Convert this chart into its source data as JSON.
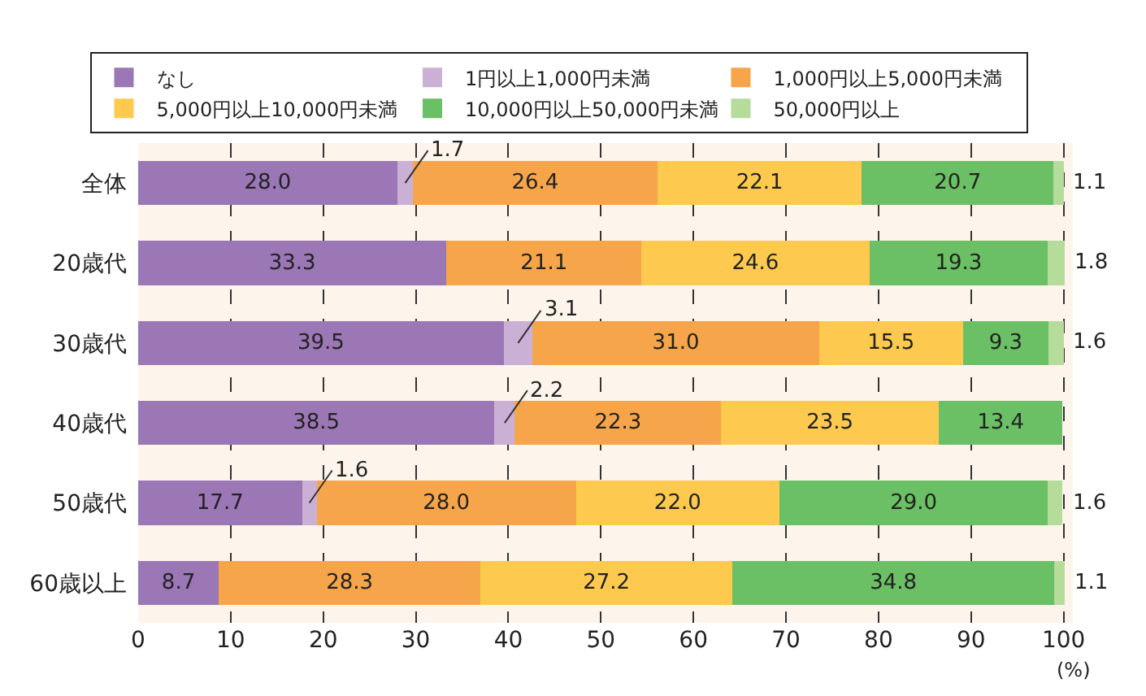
{
  "chart_data": {
    "type": "bar",
    "orientation": "horizontal",
    "stacked": true,
    "legend": "top",
    "grid": "x",
    "xlabel": "(%)",
    "categories": [
      "全体",
      "20歳代",
      "30歳代",
      "40歳代",
      "50歳代",
      "60歳以上"
    ],
    "xlim": [
      0,
      101
    ],
    "xticks": [
      0,
      10,
      20,
      30,
      40,
      50,
      60,
      70,
      80,
      90,
      100
    ],
    "series": [
      {
        "name": "なし",
        "color": "#9b77b5",
        "values": [
          28.0,
          33.3,
          39.5,
          38.5,
          17.7,
          8.7
        ],
        "value_labels": [
          "28.0",
          "33.3",
          "39.5",
          "38.5",
          "17.7",
          "8.7"
        ]
      },
      {
        "name": "1円以上1,000円未満",
        "color": "#cbb0d6",
        "values": [
          1.7,
          null,
          3.1,
          2.2,
          1.6,
          null
        ],
        "value_labels": [
          "1.7",
          null,
          "3.1",
          "2.2",
          "1.6",
          null
        ]
      },
      {
        "name": "1,000円以上5,000円未満",
        "color": "#f6a54a",
        "values": [
          26.4,
          21.1,
          31.0,
          22.3,
          28.0,
          28.3
        ],
        "value_labels": [
          "26.4",
          "21.1",
          "31.0",
          "22.3",
          "28.0",
          "28.3"
        ]
      },
      {
        "name": "5,000円以上10,000円未満",
        "color": "#fdc94f",
        "values": [
          22.1,
          24.6,
          15.5,
          23.5,
          22.0,
          27.2
        ],
        "value_labels": [
          "22.1",
          "24.6",
          "15.5",
          "23.5",
          "22.0",
          "27.2"
        ]
      },
      {
        "name": "10,000円以上50,000円未満",
        "color": "#6bbf65",
        "values": [
          20.7,
          19.3,
          9.3,
          13.4,
          29.0,
          34.8
        ],
        "value_labels": [
          "20.7",
          "19.3",
          "9.3",
          "13.4",
          "29.0",
          "34.8"
        ]
      },
      {
        "name": "50,000円以上",
        "color": "#b5dc9b",
        "values": [
          1.1,
          1.8,
          1.6,
          null,
          1.6,
          1.1
        ],
        "value_labels": [
          "1.1",
          "1.8",
          "1.6",
          null,
          "1.6",
          "1.1"
        ]
      }
    ]
  }
}
